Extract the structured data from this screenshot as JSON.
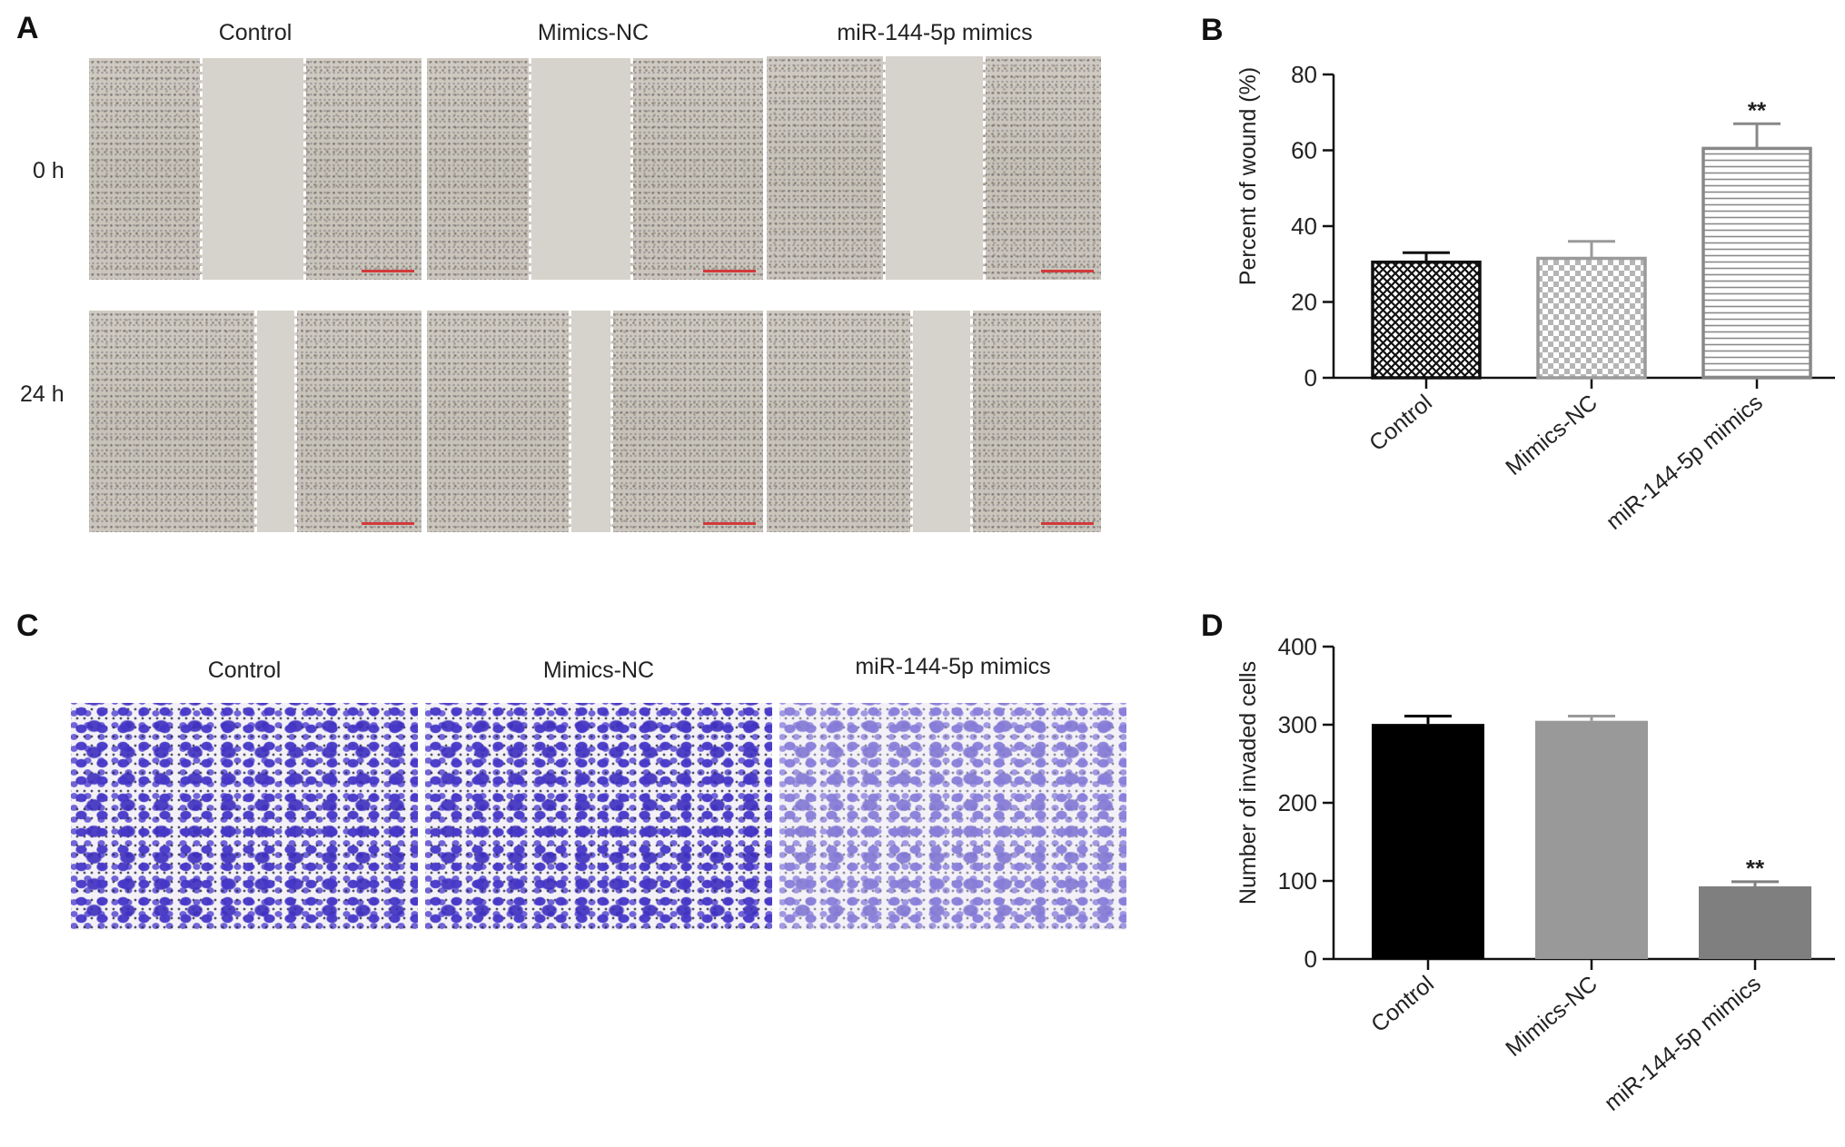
{
  "panels": {
    "A": {
      "letter": "A",
      "columns": [
        "Control",
        "Mimics-NC",
        "miR-144-5p mimics"
      ],
      "rows": [
        "0 h",
        "24 h"
      ]
    },
    "B": {
      "letter": "B"
    },
    "C": {
      "letter": "C",
      "columns": [
        "Control",
        "Mimics-NC",
        "miR-144-5p mimics"
      ]
    },
    "D": {
      "letter": "D"
    }
  },
  "chart_data": [
    {
      "panel": "B",
      "type": "bar",
      "categories": [
        "Control",
        "Mimics-NC",
        "miR-144-5p mimics"
      ],
      "values": [
        30.5,
        31.5,
        60.5
      ],
      "error": [
        2.5,
        4.5,
        6.5
      ],
      "significance": [
        "",
        "",
        "**"
      ],
      "ylabel": "Percent of wound (%)",
      "xlabel": "",
      "ylim": [
        0,
        80
      ],
      "yticks": [
        "0",
        "20",
        "40",
        "60",
        "80"
      ],
      "fills": [
        "crosshatch-dark",
        "checker-light",
        "horizontal-lines"
      ],
      "colors": [
        "#111111",
        "#9a9a9a",
        "#888888"
      ],
      "grid": false
    },
    {
      "panel": "D",
      "type": "bar",
      "categories": [
        "Control",
        "Mimics-NC",
        "miR-144-5p mimics"
      ],
      "values": [
        301,
        305,
        93
      ],
      "error": [
        10,
        6,
        6
      ],
      "significance": [
        "",
        "",
        "**"
      ],
      "ylabel": "Number of invaded cells",
      "xlabel": "",
      "ylim": [
        0,
        400
      ],
      "yticks": [
        "0",
        "100",
        "200",
        "300",
        "400"
      ],
      "colors": [
        "#000000",
        "#999999",
        "#7f7f7f"
      ],
      "grid": false
    }
  ]
}
